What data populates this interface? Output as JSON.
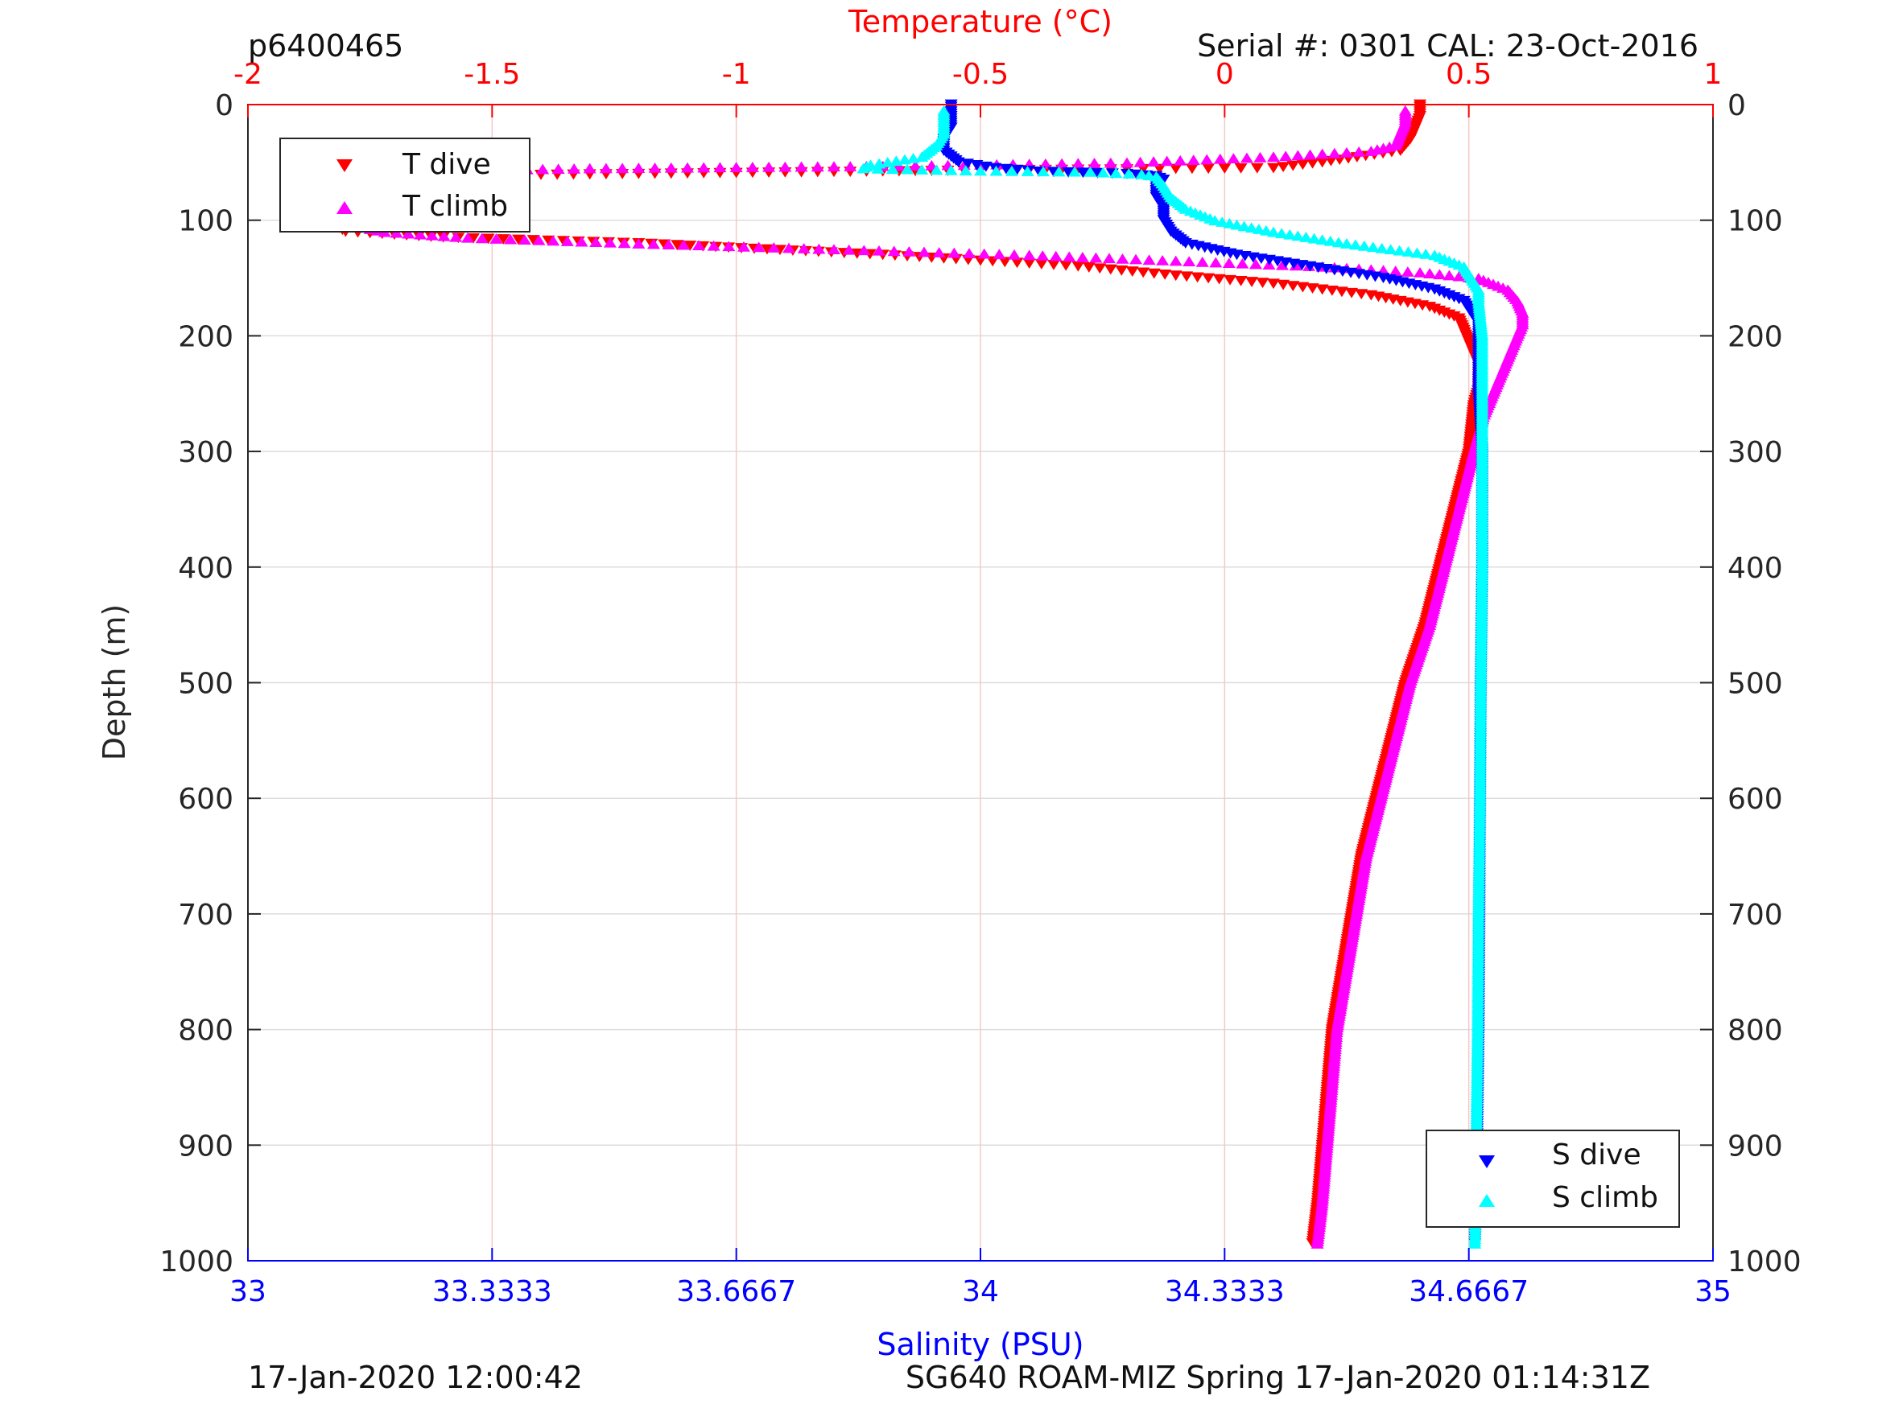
{
  "header": {
    "profile_id": "p6400465",
    "serial": "Serial #: 0301  CAL: 23-Oct-2016"
  },
  "footer": {
    "left": "17-Jan-2020 12:00:42",
    "right": "SG640 ROAM-MIZ Spring 17-Jan-2020 01:14:31Z"
  },
  "colors": {
    "t_dive": "#ff0000",
    "t_climb": "#ff00ff",
    "s_dive": "#0000ff",
    "s_climb": "#00ffff",
    "temp_axis": "#ff0000",
    "sal_axis": "#0000ff",
    "grid": "#dddddd"
  },
  "chart_data": {
    "type": "scatter",
    "ylabel": "Depth (m)",
    "y_reversed": true,
    "ylim": [
      0,
      1000
    ],
    "yticks": [
      "0",
      "100",
      "200",
      "300",
      "400",
      "500",
      "600",
      "700",
      "800",
      "900",
      "1000"
    ],
    "temperature_axis": {
      "label": "Temperature (°C)",
      "position": "top",
      "lim": [
        -2,
        1
      ],
      "ticks": [
        "-2",
        "-1.5",
        "-1",
        "-0.5",
        "0",
        "0.5",
        "1"
      ]
    },
    "salinity_axis": {
      "label": "Salinity (PSU)",
      "position": "bottom",
      "lim": [
        33,
        35
      ],
      "ticks": [
        "33",
        "33.3333",
        "33.6667",
        "34",
        "34.3333",
        "34.6667",
        "35"
      ]
    },
    "grid": true,
    "legends": [
      {
        "placement": "top-left",
        "entries": [
          "T dive",
          "T climb"
        ]
      },
      {
        "placement": "bottom-right",
        "entries": [
          "S dive",
          "S climb"
        ]
      }
    ],
    "series": [
      {
        "name": "T dive",
        "axis": "temperature",
        "marker": "triangle-down",
        "points": [
          [
            0.4,
            0
          ],
          [
            0.4,
            10
          ],
          [
            0.39,
            20
          ],
          [
            0.38,
            30
          ],
          [
            0.36,
            40
          ],
          [
            0.2,
            50
          ],
          [
            0.1,
            55
          ],
          [
            -0.5,
            57
          ],
          [
            -1.2,
            60
          ],
          [
            -1.7,
            62
          ],
          [
            -1.8,
            65
          ],
          [
            -1.82,
            70
          ],
          [
            -1.82,
            80
          ],
          [
            -1.83,
            90
          ],
          [
            -1.83,
            100
          ],
          [
            -1.82,
            105
          ],
          [
            -1.8,
            110
          ],
          [
            -1.6,
            115
          ],
          [
            -1.2,
            120
          ],
          [
            -0.7,
            130
          ],
          [
            -0.3,
            140
          ],
          [
            -0.1,
            148
          ],
          [
            0.1,
            155
          ],
          [
            0.3,
            165
          ],
          [
            0.42,
            175
          ],
          [
            0.48,
            185
          ],
          [
            0.49,
            195
          ],
          [
            0.5,
            205
          ],
          [
            0.51,
            215
          ],
          [
            0.52,
            225
          ],
          [
            0.52,
            235
          ],
          [
            0.52,
            245
          ],
          [
            0.51,
            260
          ],
          [
            0.5,
            300
          ],
          [
            0.47,
            350
          ],
          [
            0.44,
            400
          ],
          [
            0.41,
            450
          ],
          [
            0.37,
            500
          ],
          [
            0.34,
            550
          ],
          [
            0.31,
            600
          ],
          [
            0.28,
            650
          ],
          [
            0.26,
            700
          ],
          [
            0.24,
            750
          ],
          [
            0.22,
            800
          ],
          [
            0.21,
            850
          ],
          [
            0.2,
            900
          ],
          [
            0.19,
            950
          ],
          [
            0.18,
            985
          ]
        ]
      },
      {
        "name": "T climb",
        "axis": "temperature",
        "marker": "triangle-up",
        "points": [
          [
            0.37,
            5
          ],
          [
            0.37,
            15
          ],
          [
            0.36,
            25
          ],
          [
            0.35,
            35
          ],
          [
            0.3,
            40
          ],
          [
            0.1,
            45
          ],
          [
            -0.2,
            50
          ],
          [
            -0.7,
            53
          ],
          [
            -1.3,
            55
          ],
          [
            -1.75,
            58
          ],
          [
            -1.8,
            62
          ],
          [
            -1.82,
            70
          ],
          [
            -1.84,
            80
          ],
          [
            -1.83,
            90
          ],
          [
            -1.82,
            95
          ],
          [
            -1.81,
            100
          ],
          [
            -1.78,
            105
          ],
          [
            -1.72,
            110
          ],
          [
            -1.55,
            115
          ],
          [
            -1.2,
            120
          ],
          [
            -0.8,
            125
          ],
          [
            -0.4,
            130
          ],
          [
            -0.1,
            135
          ],
          [
            0.2,
            140
          ],
          [
            0.4,
            145
          ],
          [
            0.52,
            150
          ],
          [
            0.58,
            160
          ],
          [
            0.6,
            170
          ],
          [
            0.61,
            180
          ],
          [
            0.61,
            190
          ],
          [
            0.6,
            200
          ],
          [
            0.59,
            210
          ],
          [
            0.57,
            230
          ],
          [
            0.55,
            250
          ],
          [
            0.53,
            270
          ],
          [
            0.51,
            300
          ],
          [
            0.48,
            350
          ],
          [
            0.45,
            400
          ],
          [
            0.42,
            450
          ],
          [
            0.38,
            500
          ],
          [
            0.35,
            550
          ],
          [
            0.32,
            600
          ],
          [
            0.29,
            650
          ],
          [
            0.27,
            700
          ],
          [
            0.25,
            750
          ],
          [
            0.23,
            800
          ],
          [
            0.22,
            850
          ],
          [
            0.21,
            900
          ],
          [
            0.2,
            950
          ],
          [
            0.19,
            985
          ]
        ]
      },
      {
        "name": "S dive",
        "axis": "salinity",
        "marker": "triangle-down",
        "points": [
          [
            33.96,
            0
          ],
          [
            33.96,
            10
          ],
          [
            33.96,
            20
          ],
          [
            33.95,
            30
          ],
          [
            33.95,
            40
          ],
          [
            33.97,
            50
          ],
          [
            34.02,
            55
          ],
          [
            34.08,
            58
          ],
          [
            34.2,
            60
          ],
          [
            34.24,
            62
          ],
          [
            34.25,
            65
          ],
          [
            34.24,
            70
          ],
          [
            34.24,
            80
          ],
          [
            34.25,
            90
          ],
          [
            34.25,
            100
          ],
          [
            34.26,
            110
          ],
          [
            34.28,
            120
          ],
          [
            34.35,
            130
          ],
          [
            34.45,
            140
          ],
          [
            34.55,
            150
          ],
          [
            34.62,
            160
          ],
          [
            34.66,
            170
          ],
          [
            34.67,
            180
          ],
          [
            34.68,
            190
          ],
          [
            34.68,
            200
          ],
          [
            34.68,
            250
          ],
          [
            34.685,
            300
          ],
          [
            34.685,
            400
          ],
          [
            34.683,
            500
          ],
          [
            34.682,
            600
          ],
          [
            34.681,
            700
          ],
          [
            34.68,
            800
          ],
          [
            34.678,
            900
          ],
          [
            34.675,
            985
          ]
        ]
      },
      {
        "name": "S climb",
        "axis": "salinity",
        "marker": "triangle-up",
        "points": [
          [
            33.95,
            5
          ],
          [
            33.95,
            15
          ],
          [
            33.95,
            25
          ],
          [
            33.94,
            35
          ],
          [
            33.92,
            45
          ],
          [
            33.85,
            52
          ],
          [
            33.84,
            55
          ],
          [
            34.0,
            57
          ],
          [
            34.15,
            58
          ],
          [
            34.22,
            60
          ],
          [
            34.24,
            62
          ],
          [
            34.25,
            70
          ],
          [
            34.26,
            80
          ],
          [
            34.28,
            90
          ],
          [
            34.32,
            100
          ],
          [
            34.4,
            110
          ],
          [
            34.5,
            120
          ],
          [
            34.62,
            130
          ],
          [
            34.66,
            140
          ],
          [
            34.67,
            150
          ],
          [
            34.68,
            160
          ],
          [
            34.68,
            170
          ],
          [
            34.685,
            200
          ],
          [
            34.685,
            300
          ],
          [
            34.685,
            400
          ],
          [
            34.683,
            500
          ],
          [
            34.682,
            600
          ],
          [
            34.68,
            700
          ],
          [
            34.679,
            800
          ],
          [
            34.677,
            900
          ],
          [
            34.675,
            985
          ]
        ]
      }
    ]
  }
}
